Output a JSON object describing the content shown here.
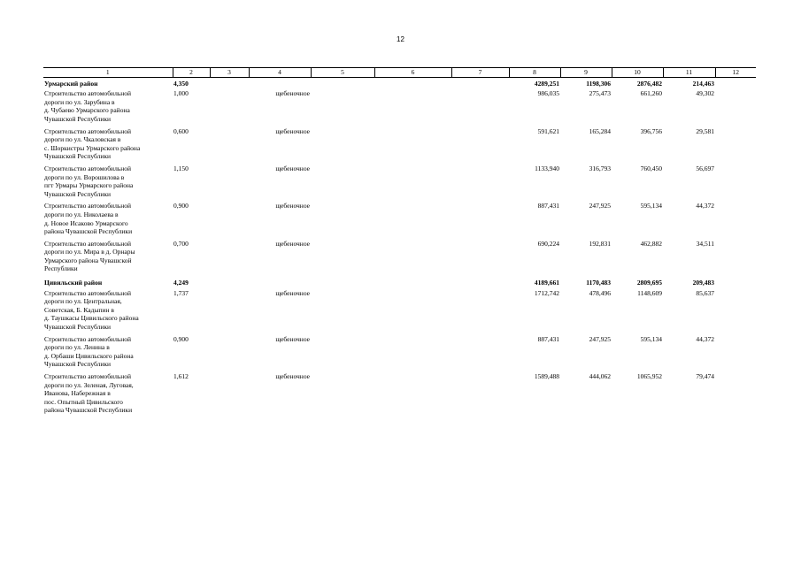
{
  "page": {
    "number": "12"
  },
  "columns": [
    "1",
    "2",
    "3",
    "4",
    "5",
    "6",
    "7",
    "8",
    "9",
    "10",
    "11",
    "12"
  ],
  "rows": [
    {
      "type": "district",
      "c1": "Урмарский район",
      "c2": "4,350",
      "c4": "",
      "c8": "4289,251",
      "c9": "1198,306",
      "c10": "2876,482",
      "c11": "214,463"
    },
    {
      "type": "item",
      "c1": [
        "Строительство автомобильной",
        "дороги по  ул. Зарубина в",
        "д. Чубаево Урмарского района",
        "Чувашской Республики"
      ],
      "c2": "1,000",
      "c4": "щебеночное",
      "c8": "986,035",
      "c9": "275,473",
      "c10": "661,260",
      "c11": "49,302"
    },
    {
      "type": "item",
      "c1": [
        "Строительство автомобильной",
        "дороги по ул. Чкаловская  в",
        "с. Шоркистры Урмарского района",
        "Чувашской Республики"
      ],
      "c2": "0,600",
      "c4": "щебеночное",
      "c8": "591,621",
      "c9": "165,284",
      "c10": "396,756",
      "c11": "29,581"
    },
    {
      "type": "item",
      "c1": [
        "Строительство автомобильной",
        "дороги по ул. Ворошилова  в",
        "пгт Урмары Урмарского района",
        "Чувашской Республики"
      ],
      "c2": "1,150",
      "c4": "щебеночное",
      "c8": "1133,940",
      "c9": "316,793",
      "c10": "760,450",
      "c11": "56,697"
    },
    {
      "type": "item",
      "c1": [
        "Строительство автомобильной",
        "дороги по ул. Николаева  в",
        "д. Новое Исаково Урмарского",
        "района Чувашской Республики"
      ],
      "c2": "0,900",
      "c4": "щебеночное",
      "c8": "887,431",
      "c9": "247,925",
      "c10": "595,134",
      "c11": "44,372"
    },
    {
      "type": "item",
      "c1": [
        "Строительство автомобильной",
        "дороги по ул. Мира в д. Орнары",
        "Урмарского района Чувашской",
        "Республики"
      ],
      "c2": "0,700",
      "c4": "щебеночное",
      "c8": "690,224",
      "c9": "192,831",
      "c10": "462,882",
      "c11": "34,511"
    },
    {
      "type": "district",
      "c1": "Цивильский район",
      "c2": "4,249",
      "c4": "",
      "c8": "4189,661",
      "c9": "1170,483",
      "c10": "2809,695",
      "c11": "209,483"
    },
    {
      "type": "item",
      "c1": [
        "Строительство автомобильной",
        "дороги по ул. Центральная,",
        "Советская, Б. Кадыпин в",
        "д. Таушкасы Цивильского района",
        "Чувашской Республики"
      ],
      "c2": "1,737",
      "c4": "щебеночное",
      "c8": "1712,742",
      "c9": "478,496",
      "c10": "1148,609",
      "c11": "85,637"
    },
    {
      "type": "item",
      "c1": [
        "Строительство автомобильной",
        "дороги по ул. Ленина в",
        "д. Орбаши Цивильского района",
        "Чувашской Республики"
      ],
      "c2": "0,900",
      "c4": "щебеночное",
      "c8": "887,431",
      "c9": "247,925",
      "c10": "595,134",
      "c11": "44,372"
    },
    {
      "type": "item",
      "c1": [
        "Строительство автомобильной",
        "дороги по ул. Зеленая, Луговая,",
        "Иванова, Набережная в",
        "пос. Опытный Цивильского",
        "района Чувашской Республики"
      ],
      "c2": "1,612",
      "c4": "щебеночное",
      "c8": "1589,488",
      "c9": "444,062",
      "c10": "1065,952",
      "c11": "79,474"
    }
  ]
}
